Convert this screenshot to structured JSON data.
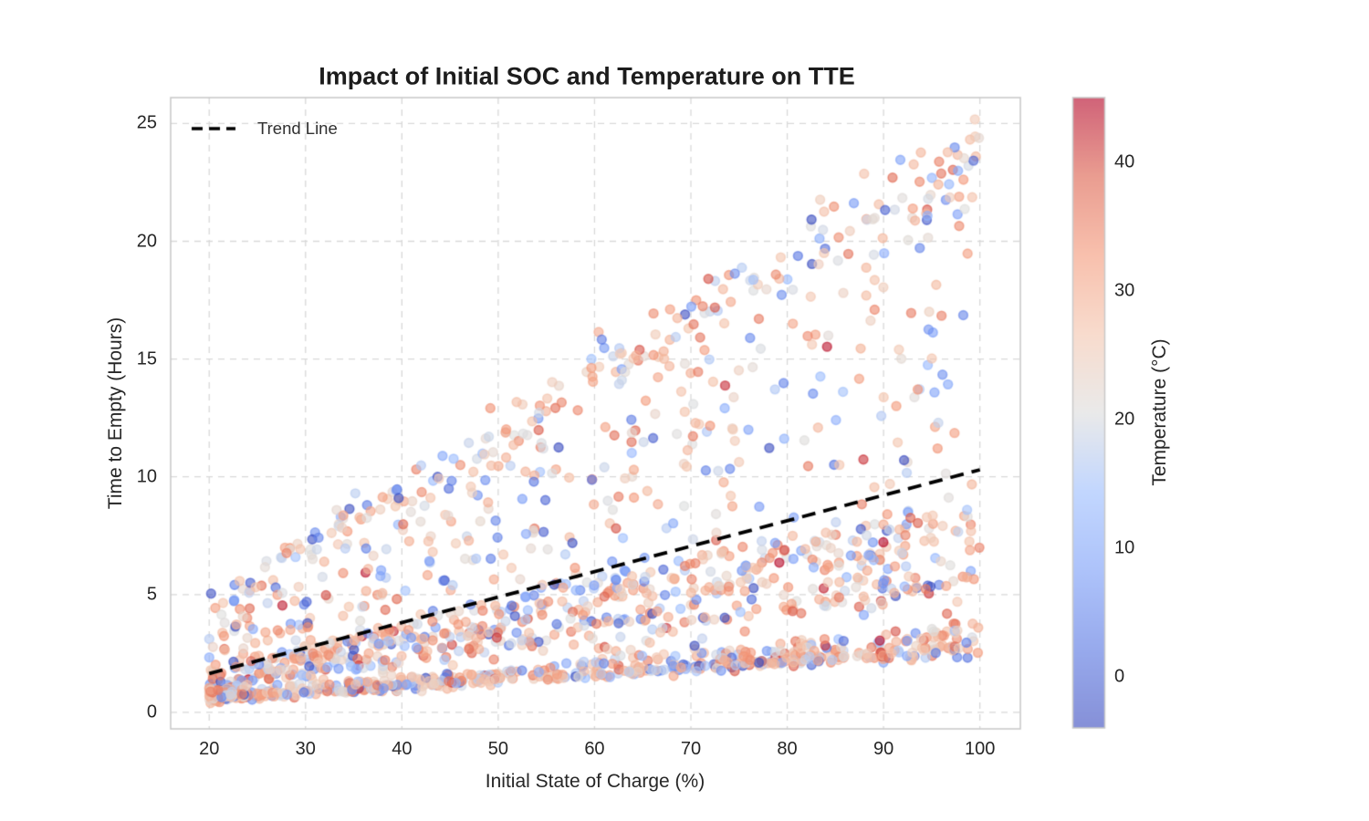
{
  "figure": {
    "background_color": "#ffffff"
  },
  "style": {
    "grid_color": "#d9d9d9",
    "spine_color": "#c8c8c8",
    "tick_text_color": "#262626",
    "title_color": "#1c1c1c",
    "colorbar_border_color": "#c9c9c9"
  },
  "chart_data": {
    "type": "scatter",
    "title": "Impact of Initial SOC and Temperature on TTE",
    "xlabel": "Initial State of Charge (%)",
    "ylabel": "Time to Empty (Hours)",
    "x_ticks": [
      20,
      30,
      40,
      50,
      60,
      70,
      80,
      90,
      100
    ],
    "y_ticks": [
      0,
      5,
      10,
      15,
      20,
      25
    ],
    "xlim": [
      16.0,
      104.2
    ],
    "ylim": [
      -0.7,
      26.1
    ],
    "grid": true,
    "legend": {
      "label": "Trend Line",
      "position": "upper-left"
    },
    "trend_line": {
      "x": [
        20,
        100
      ],
      "y": [
        1.65,
        10.3
      ],
      "color": "#000000",
      "line_style": "dashed",
      "line_width": 3.8
    },
    "colorbar": {
      "label": "Temperature (°C)",
      "vmin": -4,
      "vmax": 45,
      "ticks": [
        0,
        10,
        20,
        30,
        40
      ],
      "colormap": "coolwarm",
      "colormap_stops": [
        {
          "t": 0.0,
          "color": "#3b4cc0"
        },
        {
          "t": 0.125,
          "color": "#5876e2"
        },
        {
          "t": 0.25,
          "color": "#7b9ef8"
        },
        {
          "t": 0.375,
          "color": "#9dbefe"
        },
        {
          "t": 0.5,
          "color": "#dddddd"
        },
        {
          "t": 0.625,
          "color": "#f4c6af"
        },
        {
          "t": 0.75,
          "color": "#f49a7b"
        },
        {
          "t": 0.875,
          "color": "#dd614d"
        },
        {
          "t": 1.0,
          "color": "#b40426"
        }
      ]
    },
    "points": {
      "count": 1700,
      "extra_cluster": {
        "count": 70,
        "x_range": [
          20,
          24
        ],
        "slope_range": [
          0.025,
          0.05
        ]
      },
      "x_range": [
        20,
        100
      ],
      "alpha": 0.6,
      "marker_radius_px": 4.9,
      "seed": 20240613,
      "tte_model": "TTE (hours) ~ slope * SOC, slope drawn from mixture of discharge-rate bands; fan spans ~0.025*SOC to ~0.25*SOC",
      "slope_bands": [
        {
          "weight": 0.2,
          "dist": "normal",
          "mean": 0.0275,
          "sd": 0.0015
        },
        {
          "weight": 0.1,
          "dist": "normal",
          "mean": 0.034,
          "sd": 0.002
        },
        {
          "weight": 0.26,
          "dist": "uniform",
          "min": 0.052,
          "max": 0.095
        },
        {
          "weight": 0.34,
          "dist": "uniform",
          "min": 0.03,
          "max": 0.245
        },
        {
          "weight": 0.1,
          "dist": "normal",
          "mean": 0.238,
          "sd": 0.01
        }
      ],
      "tte_noise_sd": 0.07,
      "temperature_mix": [
        {
          "weight": 0.6,
          "mean": 30,
          "sd": 5.5
        },
        {
          "weight": 0.17,
          "mean": 20,
          "sd": 3.0
        },
        {
          "weight": 0.23,
          "mean": 8,
          "sd": 7.5
        }
      ],
      "temperature_clamp": [
        -4,
        45
      ]
    }
  }
}
